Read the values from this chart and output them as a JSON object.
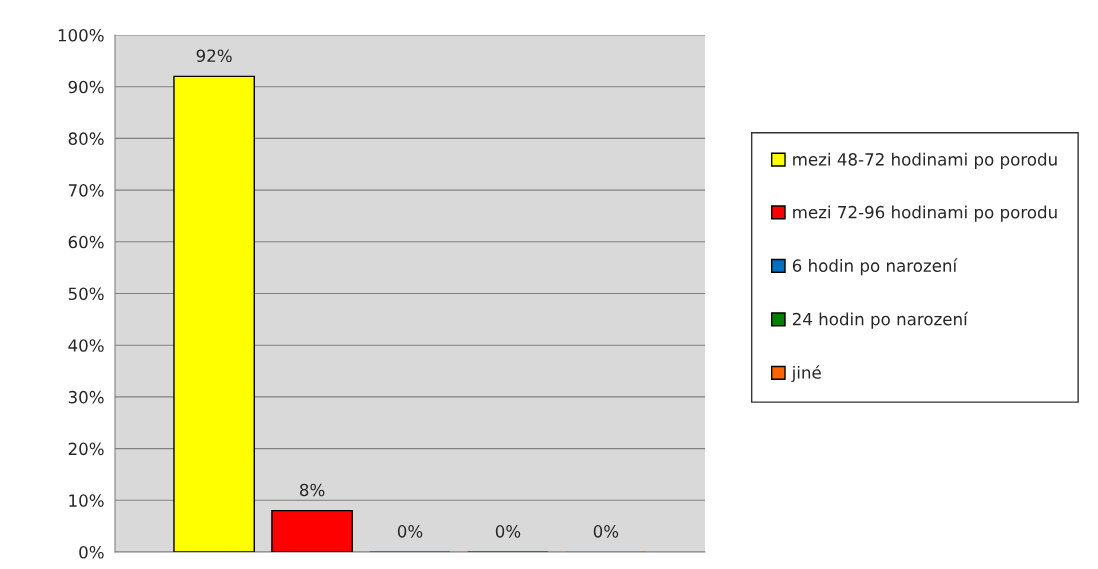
{
  "chart_data": {
    "type": "bar",
    "categories": [
      null
    ],
    "series": [
      {
        "name": "mezi 48-72 hodinami po porodu",
        "color": "#ffff00",
        "values": [
          92
        ],
        "value_labels": [
          "92%"
        ]
      },
      {
        "name": "mezi 72-96 hodinami po porodu",
        "color": "#ff0000",
        "values": [
          8
        ],
        "value_labels": [
          "8%"
        ]
      },
      {
        "name": "6 hodin po narození",
        "color": "#0070c0",
        "values": [
          0
        ],
        "value_labels": [
          "0%"
        ]
      },
      {
        "name": "24 hodin po narození",
        "color": "#008000",
        "values": [
          0
        ],
        "value_labels": [
          "0%"
        ]
      },
      {
        "name": "jiné",
        "color": "#ff6600",
        "values": [
          0
        ],
        "value_labels": [
          "0%"
        ]
      }
    ],
    "ylim": [
      0,
      100
    ],
    "yticks": [
      {
        "value": 0,
        "label": "0%"
      },
      {
        "value": 10,
        "label": "10%"
      },
      {
        "value": 20,
        "label": "20%"
      },
      {
        "value": 30,
        "label": "30%"
      },
      {
        "value": 40,
        "label": "40%"
      },
      {
        "value": 50,
        "label": "50%"
      },
      {
        "value": 60,
        "label": "60%"
      },
      {
        "value": 70,
        "label": "70%"
      },
      {
        "value": 80,
        "label": "80%"
      },
      {
        "value": 90,
        "label": "90%"
      },
      {
        "value": 100,
        "label": "100%"
      }
    ],
    "grid": "y",
    "legend": "right"
  }
}
